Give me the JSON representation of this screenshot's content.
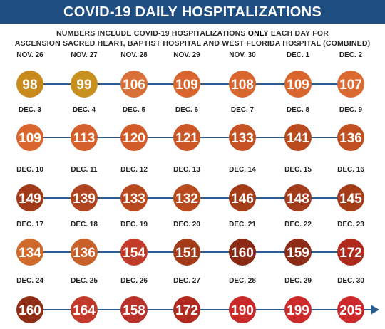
{
  "title": "COVID-19 DAILY HOSPITALIZATIONS",
  "subtitle": {
    "line1_before": "NUMBERS INCLUDE COVID-19 HOSPITALIZATIONS ",
    "line1_emphasis": "ONLY",
    "line1_after": " EACH DAY FOR",
    "line2": "ASCENSION SACRED HEART, BAPTIST HOSPITAL AND WEST FLORIDA HOSPITAL (COMBINED)"
  },
  "colors": {
    "header_bg": "#1f4e83",
    "connector": "#2a5d8f",
    "circle_low": "#c88a1c",
    "circle_mid": "#d8632e",
    "circle_high": "#8a2a14",
    "circle_peak": "#cc2a2a"
  },
  "chart_data": {
    "type": "timeline",
    "layout": "rows-of-7",
    "x": [
      "NOV. 26",
      "NOV. 27",
      "NOV. 28",
      "NOV. 29",
      "NOV. 30",
      "DEC. 1",
      "DEC. 2",
      "DEC. 3",
      "DEC. 4",
      "DEC. 5",
      "DEC. 6",
      "DEC. 7",
      "DEC. 8",
      "DEC. 9",
      "DEC. 10",
      "DEC. 11",
      "DEC. 12",
      "DEC. 13",
      "DEC. 14",
      "DEC. 15",
      "DEC. 16",
      "DEC. 17",
      "DEC. 18",
      "DEC. 19",
      "DEC. 20",
      "DEC. 21",
      "DEC. 22",
      "DEC. 23",
      "DEC. 24",
      "DEC. 25",
      "DEC. 26",
      "DEC. 27",
      "DEC. 28",
      "DEC. 29",
      "DEC. 30"
    ],
    "values": [
      98,
      99,
      106,
      109,
      108,
      109,
      107,
      109,
      113,
      120,
      121,
      133,
      141,
      136,
      149,
      139,
      133,
      132,
      146,
      148,
      145,
      134,
      136,
      154,
      151,
      160,
      159,
      172,
      160,
      164,
      158,
      172,
      190,
      199,
      205
    ],
    "colors": [
      "#c88a1c",
      "#c8901e",
      "#d8703a",
      "#d8662e",
      "#d8662e",
      "#d8662e",
      "#db6a30",
      "#d8662e",
      "#d4612c",
      "#d05a28",
      "#cc5626",
      "#c45222",
      "#b84a1e",
      "#c0501f",
      "#a03a18",
      "#b04420",
      "#b8481e",
      "#b84a1e",
      "#a43c18",
      "#a23c1a",
      "#a43c18",
      "#d06a2c",
      "#c8602a",
      "#c23a2a",
      "#a43a18",
      "#8a2a14",
      "#8c2c16",
      "#b02a1c",
      "#8e2e16",
      "#c23a2a",
      "#b8302a",
      "#b02a20",
      "#c82a2a",
      "#cc2a2a",
      "#cc2a2a"
    ]
  }
}
